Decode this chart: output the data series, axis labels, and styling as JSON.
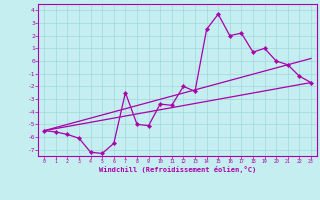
{
  "xlabel": "Windchill (Refroidissement éolien,°C)",
  "xlim": [
    -0.5,
    23.5
  ],
  "ylim": [
    -7.5,
    4.5
  ],
  "xticks": [
    0,
    1,
    2,
    3,
    4,
    5,
    6,
    7,
    8,
    9,
    10,
    11,
    12,
    13,
    14,
    15,
    16,
    17,
    18,
    19,
    20,
    21,
    22,
    23
  ],
  "yticks": [
    -7,
    -6,
    -5,
    -4,
    -3,
    -2,
    -1,
    0,
    1,
    2,
    3,
    4
  ],
  "bg_color": "#c5eef0",
  "line_color": "#aa00aa",
  "grid_color": "#9fd8dc",
  "series1_x": [
    0,
    1,
    2,
    3,
    4,
    5,
    6,
    7,
    8,
    9,
    10,
    11,
    12,
    13,
    14,
    15,
    16,
    17,
    18,
    19,
    20,
    21,
    22,
    23
  ],
  "series1_y": [
    -5.5,
    -5.6,
    -5.8,
    -6.1,
    -7.2,
    -7.3,
    -6.5,
    -2.5,
    -5.0,
    -5.1,
    -3.4,
    -3.5,
    -2.0,
    -2.4,
    2.5,
    3.7,
    2.0,
    2.2,
    0.7,
    1.0,
    0.0,
    -0.3,
    -1.2,
    -1.7
  ],
  "line1_x": [
    0,
    23
  ],
  "line1_y": [
    -5.5,
    -1.7
  ],
  "line2_x": [
    0,
    23
  ],
  "line2_y": [
    -5.5,
    0.2
  ]
}
